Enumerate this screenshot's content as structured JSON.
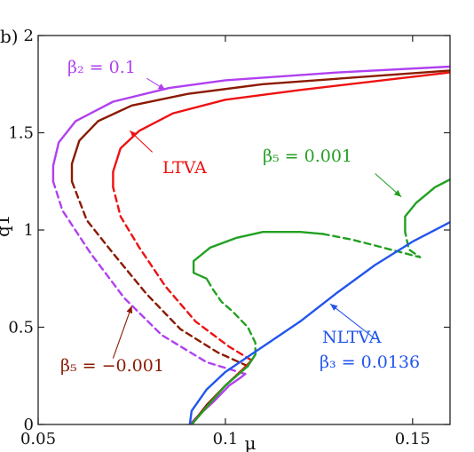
{
  "panel_label": "b)",
  "chart_data": {
    "type": "line",
    "xlim": [
      0.05,
      0.16
    ],
    "ylim": [
      0,
      2
    ],
    "xticks": [
      0.05,
      0.1,
      0.15
    ],
    "xtick_labels": [
      "0.05",
      "0.1",
      "0.15"
    ],
    "yticks": [
      0,
      0.5,
      1,
      1.5,
      2
    ],
    "ytick_labels": [
      "0",
      "0.5",
      "1",
      "1.5",
      "2"
    ],
    "ylabel": "q1",
    "xlabel": "μ",
    "grid": false,
    "series": [
      {
        "color": "#B040F0",
        "stable": [
          [
            0.1053,
            0.26
          ],
          [
            0.104,
            0.24
          ],
          [
            0.101,
            0.2
          ],
          [
            0.097,
            0.12
          ],
          [
            0.093,
            0.05
          ],
          [
            0.0905,
            0.0
          ]
        ],
        "unstable": [
          [
            0.1053,
            0.26
          ],
          [
            0.095,
            0.32
          ],
          [
            0.083,
            0.46
          ],
          [
            0.073,
            0.65
          ],
          [
            0.064,
            0.88
          ],
          [
            0.0565,
            1.1
          ],
          [
            0.054,
            1.25
          ]
        ],
        "upper": [
          [
            0.054,
            1.25
          ],
          [
            0.054,
            1.33
          ],
          [
            0.0555,
            1.45
          ],
          [
            0.06,
            1.56
          ],
          [
            0.07,
            1.66
          ],
          [
            0.085,
            1.73
          ],
          [
            0.1,
            1.77
          ],
          [
            0.13,
            1.81
          ],
          [
            0.16,
            1.84
          ]
        ]
      },
      {
        "color": "#8B1A00",
        "stable": [
          [
            0.106,
            0.3
          ],
          [
            0.104,
            0.27
          ],
          [
            0.1,
            0.2
          ],
          [
            0.095,
            0.1
          ],
          [
            0.091,
            0.0
          ]
        ],
        "unstable": [
          [
            0.106,
            0.3
          ],
          [
            0.098,
            0.37
          ],
          [
            0.088,
            0.49
          ],
          [
            0.079,
            0.67
          ],
          [
            0.07,
            0.88
          ],
          [
            0.063,
            1.05
          ],
          [
            0.059,
            1.25
          ]
        ],
        "upper": [
          [
            0.059,
            1.25
          ],
          [
            0.059,
            1.34
          ],
          [
            0.061,
            1.46
          ],
          [
            0.066,
            1.56
          ],
          [
            0.075,
            1.64
          ],
          [
            0.09,
            1.7
          ],
          [
            0.11,
            1.75
          ],
          [
            0.16,
            1.82
          ]
        ]
      },
      {
        "color": "#EE1111",
        "stable": [
          [
            0.107,
            0.33
          ],
          [
            0.105,
            0.29
          ],
          [
            0.1,
            0.2
          ],
          [
            0.095,
            0.09
          ],
          [
            0.091,
            0.0
          ]
        ],
        "unstable": [
          [
            0.107,
            0.33
          ],
          [
            0.101,
            0.4
          ],
          [
            0.092,
            0.53
          ],
          [
            0.084,
            0.71
          ],
          [
            0.077,
            0.91
          ],
          [
            0.072,
            1.07
          ],
          [
            0.07,
            1.22
          ]
        ],
        "upper": [
          [
            0.07,
            1.22
          ],
          [
            0.07,
            1.3
          ],
          [
            0.072,
            1.42
          ],
          [
            0.077,
            1.51
          ],
          [
            0.086,
            1.6
          ],
          [
            0.1,
            1.67
          ],
          [
            0.12,
            1.72
          ],
          [
            0.16,
            1.81
          ]
        ]
      },
      {
        "color": "#22A022",
        "stable": [
          [
            0.108,
            0.36
          ],
          [
            0.106,
            0.3
          ],
          [
            0.1,
            0.2
          ],
          [
            0.095,
            0.09
          ],
          [
            0.091,
            0.0
          ]
        ],
        "unstable": [
          [
            0.108,
            0.36
          ],
          [
            0.108,
            0.42
          ],
          [
            0.106,
            0.5
          ],
          [
            0.102,
            0.58
          ],
          [
            0.099,
            0.63
          ],
          [
            0.0965,
            0.7
          ],
          [
            0.095,
            0.75
          ]
        ],
        "stable_b": [
          [
            0.095,
            0.75
          ],
          [
            0.0915,
            0.78
          ],
          [
            0.0915,
            0.84
          ],
          [
            0.096,
            0.91
          ],
          [
            0.103,
            0.96
          ],
          [
            0.11,
            0.99
          ],
          [
            0.12,
            0.99
          ],
          [
            0.126,
            0.98
          ]
        ],
        "unstable_b": [
          [
            0.126,
            0.98
          ],
          [
            0.134,
            0.95
          ],
          [
            0.14,
            0.92
          ],
          [
            0.146,
            0.89
          ],
          [
            0.15,
            0.87
          ],
          [
            0.152,
            0.86
          ],
          [
            0.149,
            0.9
          ],
          [
            0.148,
            0.99
          ]
        ],
        "stable_c": [
          [
            0.148,
            0.99
          ],
          [
            0.148,
            1.07
          ],
          [
            0.151,
            1.14
          ],
          [
            0.156,
            1.22
          ],
          [
            0.16,
            1.26
          ],
          [
            0.166,
            1.35
          ]
        ]
      },
      {
        "color": "#2255EE",
        "stable": [
          [
            0.0905,
            0.0
          ],
          [
            0.091,
            0.07
          ],
          [
            0.095,
            0.18
          ],
          [
            0.1,
            0.27
          ],
          [
            0.11,
            0.4
          ],
          [
            0.12,
            0.53
          ],
          [
            0.13,
            0.68
          ],
          [
            0.14,
            0.82
          ],
          [
            0.15,
            0.94
          ],
          [
            0.16,
            1.04
          ]
        ]
      }
    ],
    "annotations": [
      {
        "text": "β₂ = 0.1",
        "color": "#B040F0"
      },
      {
        "text": "LTVA",
        "color": "#EE1111"
      },
      {
        "text": "β₅ = 0.001",
        "color": "#22A022"
      },
      {
        "text": "NLTVA",
        "color": "#2255EE"
      },
      {
        "text": "β₃ = 0.0136",
        "color": "#2255EE"
      },
      {
        "text": "β₅ = −0.001",
        "color": "#8B1A00"
      }
    ]
  }
}
